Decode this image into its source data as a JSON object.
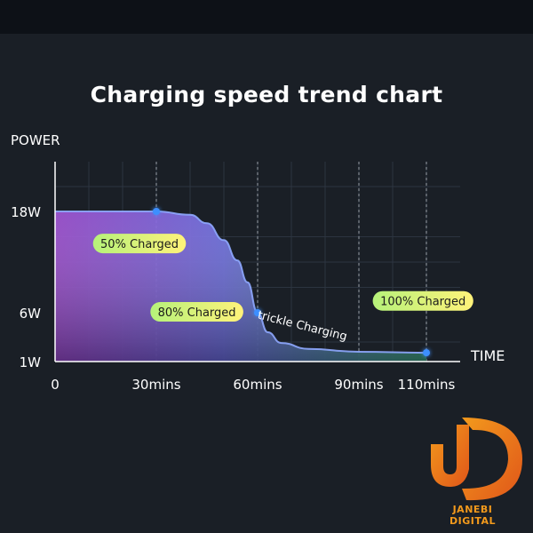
{
  "chart_data": {
    "type": "area",
    "title": "Charging speed trend chart",
    "ylabel": "POWER",
    "xlabel": "TIME",
    "x_ticks": [
      {
        "value": 0,
        "label": "0"
      },
      {
        "value": 30,
        "label": "30mins"
      },
      {
        "value": 60,
        "label": "60mins"
      },
      {
        "value": 90,
        "label": "90mins"
      },
      {
        "value": 110,
        "label": "110mins"
      }
    ],
    "y_ticks": [
      {
        "value": 1,
        "label": "1W"
      },
      {
        "value": 6,
        "label": "6W"
      },
      {
        "value": 18,
        "label": "18W"
      }
    ],
    "xlim": [
      0,
      120
    ],
    "ylim": [
      0,
      24
    ],
    "grid": true,
    "series": [
      {
        "x": [
          0,
          15,
          30,
          40,
          45,
          50,
          54,
          57,
          60,
          63,
          67,
          75,
          90,
          110
        ],
        "y": [
          18,
          18,
          18,
          17.6,
          16.6,
          14.6,
          12.2,
          9.6,
          6,
          4,
          2.9,
          2.3,
          2.0,
          1.9
        ]
      }
    ],
    "markers": [
      {
        "x": 30,
        "y": 18
      },
      {
        "x": 60,
        "y": 6
      },
      {
        "x": 110,
        "y": 1.9
      }
    ],
    "annotations": [
      {
        "text": "50% Charged",
        "x": 25,
        "y": 14.2
      },
      {
        "text": "80% Charged",
        "x": 42,
        "y": 6.1
      },
      {
        "text": "100% Charged",
        "x": 109,
        "y": 7.4
      },
      {
        "text": "trickle  Charging",
        "x": 73,
        "y": 4.3
      }
    ],
    "colors": {
      "line": "#8fa8ff",
      "area_start": "#9a48d0",
      "area_mid": "#6a6ae0",
      "area_end": "#3a9a7a",
      "marker": "#3d8fff",
      "label_bg_start": "#b6f27a",
      "label_bg_end": "#fff27a"
    }
  },
  "watermark": {
    "text": "JANEBI DIGITAL",
    "color": "#f39a1c"
  }
}
